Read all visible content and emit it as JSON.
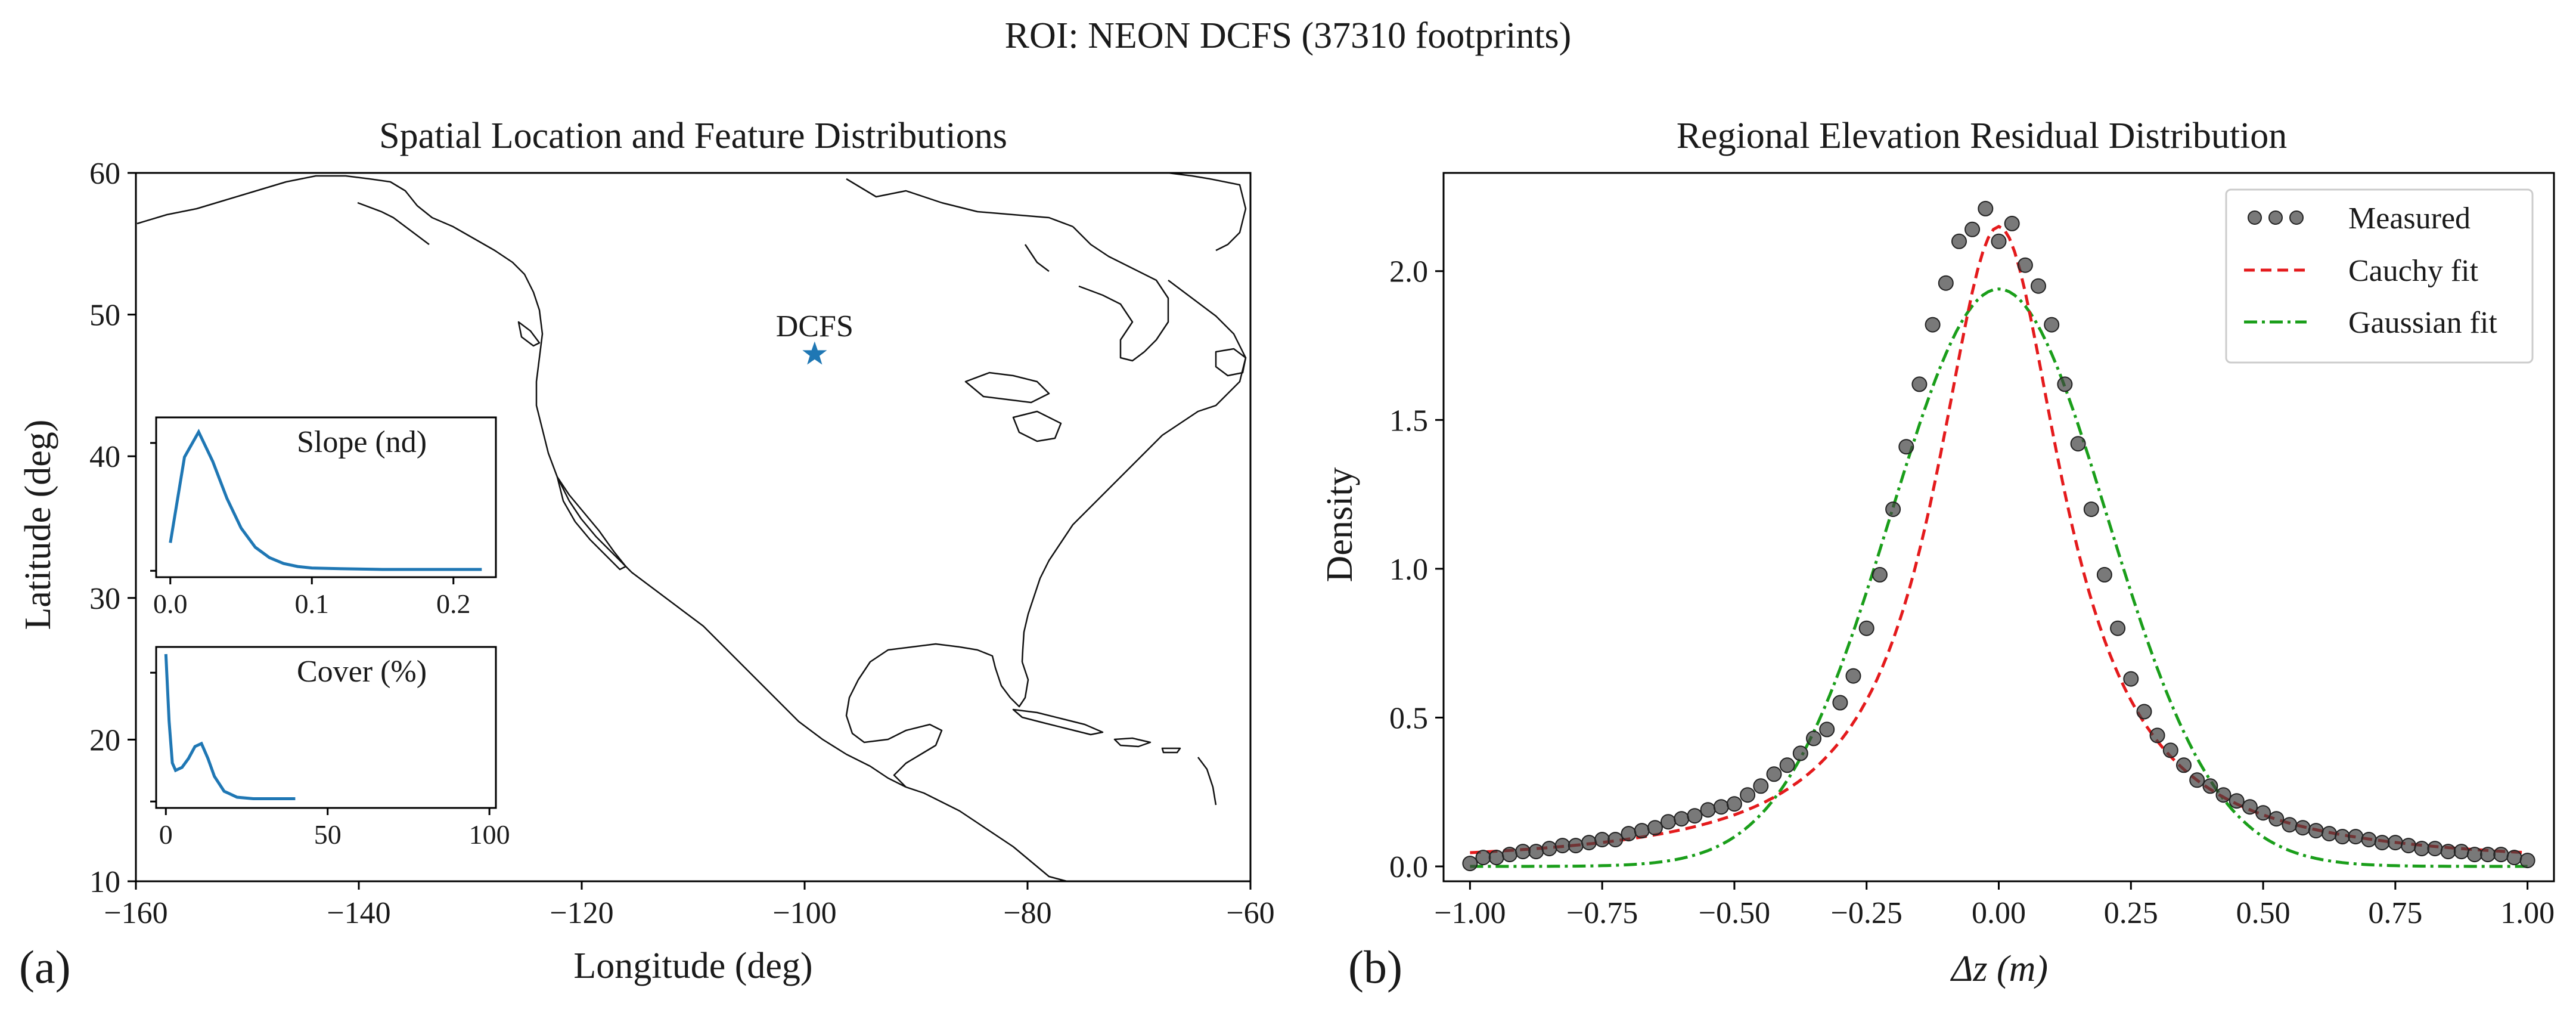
{
  "figure_title": "ROI: NEON DCFS (37310 footprints)",
  "colors": {
    "inset_line": "#1f77b4",
    "marker": "#1f77b4",
    "measured": "#404040",
    "cauchy": "#e41a1c",
    "gaussian": "#1a9e1a"
  },
  "chart_data": [
    {
      "panel": "(a)",
      "type": "scatter",
      "title": "Spatial Location and Feature Distributions",
      "xlabel": "Longitude (deg)",
      "ylabel": "Latitude (deg)",
      "xlim": [
        -160,
        -60
      ],
      "ylim": [
        10,
        60
      ],
      "xticks": [
        "−160",
        "−140",
        "−120",
        "−100",
        "−80",
        "−60"
      ],
      "xtick_values": [
        -160,
        -140,
        -120,
        -100,
        -80,
        -60
      ],
      "yticks": [
        "10",
        "20",
        "30",
        "40",
        "50",
        "60"
      ],
      "ytick_values": [
        10,
        20,
        30,
        40,
        50,
        60
      ],
      "basemap": "North America coastline",
      "site": {
        "label": "DCFS",
        "lon": -99.1,
        "lat": 47.2,
        "marker": "star"
      },
      "insets": [
        {
          "type": "line",
          "title": "Slope (nd)",
          "xlim": [
            -0.01,
            0.23
          ],
          "ylim": [
            0,
            1
          ],
          "xticks": [
            "0.0",
            "0.1",
            "0.2"
          ],
          "xtick_values": [
            0.0,
            0.1,
            0.2
          ],
          "x": [
            0.0,
            0.01,
            0.02,
            0.03,
            0.04,
            0.05,
            0.06,
            0.07,
            0.08,
            0.09,
            0.1,
            0.12,
            0.15,
            0.18,
            0.22
          ],
          "y": [
            0.2,
            0.78,
            0.95,
            0.75,
            0.5,
            0.3,
            0.17,
            0.1,
            0.06,
            0.04,
            0.03,
            0.025,
            0.02,
            0.02,
            0.02
          ]
        },
        {
          "type": "line",
          "title": "Cover (%)",
          "xlim": [
            -3,
            102
          ],
          "ylim": [
            0,
            1
          ],
          "xticks": [
            "0",
            "50",
            "100"
          ],
          "xtick_values": [
            0,
            50,
            100
          ],
          "x": [
            0,
            1,
            2,
            3,
            5,
            7,
            9,
            11,
            13,
            15,
            18,
            22,
            27,
            33,
            40
          ],
          "y": [
            1.0,
            0.55,
            0.27,
            0.22,
            0.24,
            0.3,
            0.38,
            0.4,
            0.3,
            0.18,
            0.08,
            0.04,
            0.03,
            0.03,
            0.03
          ]
        }
      ]
    },
    {
      "panel": "(b)",
      "type": "scatter",
      "title": "Regional Elevation Residual Distribution",
      "xlabel": "Δz (m)",
      "ylabel": "Density",
      "xlim": [
        -1.05,
        1.05
      ],
      "ylim": [
        -0.05,
        2.33
      ],
      "xticks": [
        "−1.00",
        "−0.75",
        "−0.50",
        "−0.25",
        "0.00",
        "0.25",
        "0.50",
        "0.75",
        "1.00"
      ],
      "xtick_values": [
        -1.0,
        -0.75,
        -0.5,
        -0.25,
        0.0,
        0.25,
        0.5,
        0.75,
        1.0
      ],
      "yticks": [
        "0.0",
        "0.5",
        "1.0",
        "1.5",
        "2.0"
      ],
      "ytick_values": [
        0.0,
        0.5,
        1.0,
        1.5,
        2.0
      ],
      "legend": {
        "position": "top-right",
        "entries": [
          "Measured",
          "Cauchy fit",
          "Gaussian fit"
        ]
      },
      "series": [
        {
          "name": "Measured",
          "style": "dots",
          "x": [
            -1.0,
            -0.975,
            -0.95,
            -0.925,
            -0.9,
            -0.875,
            -0.85,
            -0.825,
            -0.8,
            -0.775,
            -0.75,
            -0.725,
            -0.7,
            -0.675,
            -0.65,
            -0.625,
            -0.6,
            -0.575,
            -0.55,
            -0.525,
            -0.5,
            -0.475,
            -0.45,
            -0.425,
            -0.4,
            -0.375,
            -0.35,
            -0.325,
            -0.3,
            -0.275,
            -0.25,
            -0.225,
            -0.2,
            -0.175,
            -0.15,
            -0.125,
            -0.1,
            -0.075,
            -0.05,
            -0.025,
            0.0,
            0.025,
            0.05,
            0.075,
            0.1,
            0.125,
            0.15,
            0.175,
            0.2,
            0.225,
            0.25,
            0.275,
            0.3,
            0.325,
            0.35,
            0.375,
            0.4,
            0.425,
            0.45,
            0.475,
            0.5,
            0.525,
            0.55,
            0.575,
            0.6,
            0.625,
            0.65,
            0.675,
            0.7,
            0.725,
            0.75,
            0.775,
            0.8,
            0.825,
            0.85,
            0.875,
            0.9,
            0.925,
            0.95,
            0.975,
            1.0
          ],
          "y": [
            0.01,
            0.03,
            0.03,
            0.04,
            0.05,
            0.05,
            0.06,
            0.07,
            0.07,
            0.08,
            0.09,
            0.09,
            0.11,
            0.12,
            0.13,
            0.15,
            0.16,
            0.17,
            0.19,
            0.2,
            0.21,
            0.24,
            0.27,
            0.31,
            0.34,
            0.38,
            0.43,
            0.46,
            0.55,
            0.64,
            0.8,
            0.98,
            1.2,
            1.41,
            1.62,
            1.82,
            1.96,
            2.1,
            2.14,
            2.21,
            2.1,
            2.16,
            2.02,
            1.95,
            1.82,
            1.62,
            1.42,
            1.2,
            0.98,
            0.8,
            0.63,
            0.52,
            0.44,
            0.39,
            0.34,
            0.29,
            0.27,
            0.24,
            0.22,
            0.2,
            0.18,
            0.16,
            0.14,
            0.13,
            0.12,
            0.11,
            0.1,
            0.1,
            0.09,
            0.08,
            0.08,
            0.07,
            0.06,
            0.06,
            0.05,
            0.05,
            0.04,
            0.04,
            0.04,
            0.03,
            0.02
          ]
        },
        {
          "name": "Cauchy fit",
          "style": "dashed",
          "x0": 0.0,
          "gamma": 0.148,
          "peak": 2.15
        },
        {
          "name": "Gaussian fit",
          "style": "dashdot",
          "mu": 0.0,
          "sigma": 0.205,
          "peak": 1.94
        }
      ]
    }
  ]
}
